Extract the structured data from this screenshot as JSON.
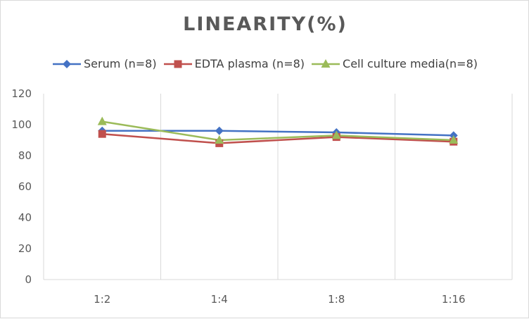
{
  "chart_data": {
    "type": "line",
    "title": "LINEARITY(%)",
    "categories": [
      "1:2",
      "1:4",
      "1:8",
      "1:16"
    ],
    "ylim": [
      0,
      120
    ],
    "yticks": [
      0,
      20,
      40,
      60,
      80,
      100,
      120
    ],
    "grid": "vertical",
    "legend_position": "top",
    "series": [
      {
        "name": "Serum (n=8)",
        "color": "#4472c4",
        "marker": "diamond",
        "values": [
          96,
          96,
          95,
          93
        ]
      },
      {
        "name": "EDTA plasma (n=8)",
        "color": "#c0504d",
        "marker": "square",
        "values": [
          94,
          88,
          92,
          89
        ]
      },
      {
        "name": "Cell culture media(n=8)",
        "color": "#9bbb59",
        "marker": "triangle",
        "values": [
          102,
          90,
          93,
          90
        ]
      }
    ]
  }
}
